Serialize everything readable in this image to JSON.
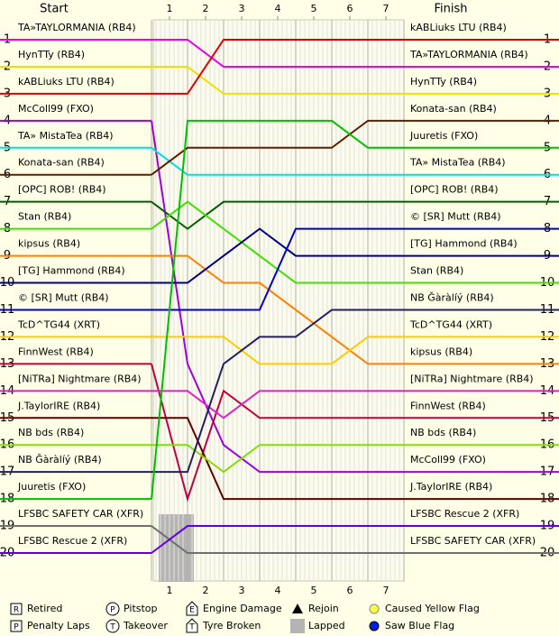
{
  "chart_data": {
    "type": "line",
    "title_left": "Start",
    "title_right": "Finish",
    "x": [
      0,
      1,
      2,
      3,
      4,
      5,
      6,
      7
    ],
    "xlim": [
      0,
      7
    ],
    "xticks": [
      {
        "value": 0.5,
        "label": "1"
      },
      {
        "value": 1.5,
        "label": "2"
      },
      {
        "value": 2.5,
        "label": "3"
      },
      {
        "value": 3.5,
        "label": "4"
      },
      {
        "value": 4.5,
        "label": "5"
      },
      {
        "value": 5.5,
        "label": "6"
      },
      {
        "value": 6.5,
        "label": "7"
      }
    ],
    "ylim": [
      1,
      20
    ],
    "yticks": [
      1,
      2,
      3,
      4,
      5,
      6,
      7,
      8,
      9,
      10,
      11,
      12,
      13,
      14,
      15,
      16,
      17,
      18,
      19,
      20
    ],
    "series": [
      {
        "name": "TA»TAYLORMANIA (RB4)",
        "color": "#ee00ee",
        "values": [
          1,
          1,
          2,
          2,
          2,
          2,
          2,
          2
        ]
      },
      {
        "name": "HynTTy (RB4)",
        "color": "#f0e000",
        "values": [
          2,
          2,
          3,
          3,
          3,
          3,
          3,
          3
        ]
      },
      {
        "name": "kABLiuks LTU (RB4)",
        "color": "#e00000",
        "values": [
          3,
          3,
          1,
          1,
          1,
          1,
          1,
          1
        ]
      },
      {
        "name": "McColl99 (FXO)",
        "color": "#a000e0",
        "values": [
          4,
          13,
          16,
          17,
          17,
          17,
          17,
          17
        ]
      },
      {
        "name": "TA» MistaTea (RB4)",
        "color": "#00e0e0",
        "values": [
          5,
          6,
          6,
          6,
          6,
          6,
          6,
          6
        ]
      },
      {
        "name": "Konata-san (RB4)",
        "color": "#602000",
        "values": [
          6,
          5,
          5,
          5,
          5,
          5,
          4,
          4
        ]
      },
      {
        "name": "[OPC] ROB! (RB4)",
        "color": "#006000",
        "values": [
          7,
          8,
          7,
          7,
          7,
          7,
          7,
          7
        ]
      },
      {
        "name": "Stan (RB4)",
        "color": "#40e000",
        "values": [
          8,
          7,
          8,
          9,
          10,
          10,
          10,
          10
        ]
      },
      {
        "name": "kipsus (RB4)",
        "color": "#ff8000",
        "values": [
          9,
          9,
          10,
          10,
          11,
          12,
          13,
          13
        ]
      },
      {
        "name": "[TG] Hammond (RB4)",
        "color": "#000080",
        "values": [
          10,
          10,
          9,
          8,
          9,
          9,
          9,
          9
        ]
      },
      {
        "name": "© [SR] Mutt (RB4)",
        "color": "#0000c0",
        "values": [
          11,
          11,
          11,
          11,
          8,
          8,
          8,
          8
        ]
      },
      {
        "name": "TcD^TG44 (XRT)",
        "color": "#ffcc00",
        "values": [
          12,
          12,
          12,
          13,
          13,
          13,
          12,
          12
        ]
      },
      {
        "name": "FinnWest (RB4)",
        "color": "#c00040",
        "values": [
          13,
          18,
          14,
          15,
          15,
          15,
          15,
          15
        ]
      },
      {
        "name": "[NiTRa] Nightmare (RB4)",
        "color": "#e020c0",
        "values": [
          14,
          14,
          15,
          14,
          14,
          14,
          14,
          14
        ]
      },
      {
        "name": "J.TaylorIRE (RB4)",
        "color": "#600000",
        "values": [
          15,
          15,
          18,
          18,
          18,
          18,
          18,
          18
        ]
      },
      {
        "name": "NB bds (RB4)",
        "color": "#80e000",
        "values": [
          16,
          16,
          17,
          16,
          16,
          16,
          16,
          16
        ]
      },
      {
        "name": "NB Ğàràlíý (RB4)",
        "color": "#202060",
        "values": [
          17,
          17,
          13,
          12,
          12,
          11,
          11,
          11
        ]
      },
      {
        "name": "Juuretis (FXO)",
        "color": "#00c000",
        "values": [
          18,
          4,
          4,
          4,
          4,
          4,
          5,
          5
        ]
      },
      {
        "name": "LFSBC SAFETY CAR (XFR)",
        "color": "#707070",
        "values": [
          19,
          20,
          20,
          20,
          20,
          20,
          20,
          20
        ]
      },
      {
        "name": "LFSBC Rescue 2 (XFR)",
        "color": "#6000e0",
        "values": [
          20,
          19,
          19,
          19,
          19,
          19,
          19,
          19
        ]
      }
    ],
    "legend": [
      {
        "symbol": "R",
        "label": "Retired"
      },
      {
        "symbol": "P",
        "label": "Penalty Laps"
      },
      {
        "symbol": "P",
        "label": "Pitstop"
      },
      {
        "symbol": "T",
        "label": "Takeover"
      },
      {
        "symbol": "E",
        "label": "Engine Damage"
      },
      {
        "symbol": "T",
        "label": "Tyre Broken"
      },
      {
        "label": "Rejoin"
      },
      {
        "label": "Lapped"
      },
      {
        "label": "Caused Yellow Flag"
      },
      {
        "label": "Saw Blue Flag"
      }
    ]
  }
}
